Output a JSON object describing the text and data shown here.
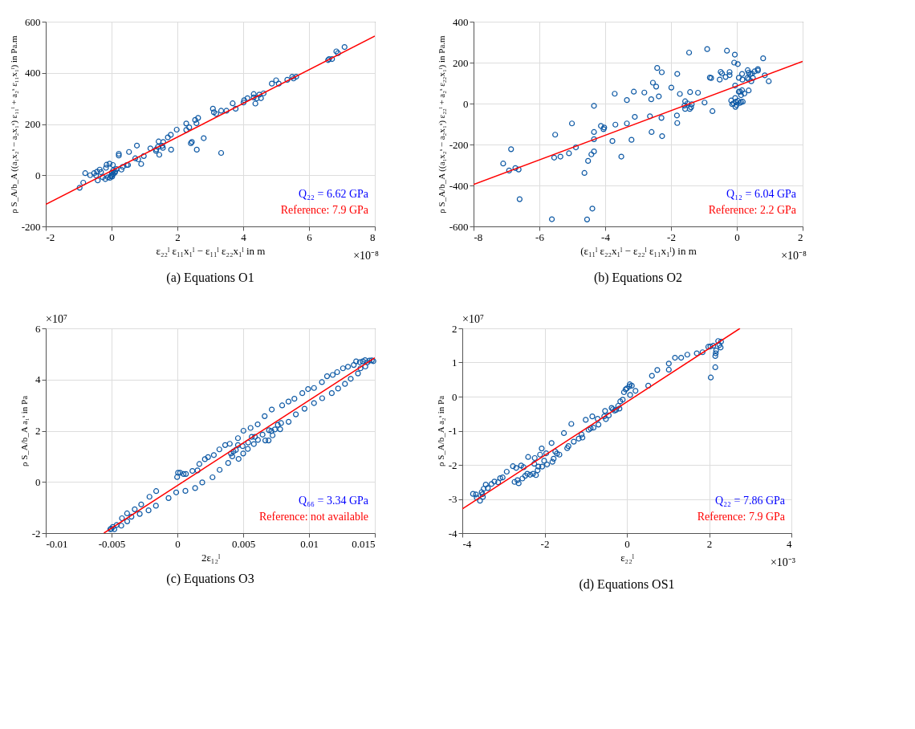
{
  "chart_data": [
    {
      "type": "scatter",
      "title": "(a) Equations O1",
      "xlabel": "ε₂₂ˡ ε₁₁x₁ˡ − ε₁₁ˡ ε₂₂x₁ˡ in m",
      "ylabel": "ρ S_A/b_A ((a₁x₂ˢ − a₂x₁ˢ) ε₁₁ˡ + a₂ˢ ε₁₁x₁ˡ) in Pa.m",
      "xlim": [
        -2,
        8
      ],
      "xticks": [
        -2,
        0,
        2,
        4,
        6,
        8
      ],
      "ylim": [
        -200,
        600
      ],
      "yticks": [
        -200,
        0,
        200,
        400,
        600
      ],
      "grid": true,
      "annotations": [
        "×10⁻⁸",
        "Q₂₂ = 6.62 GPa",
        "Reference: 7.9 GPa"
      ],
      "series": [
        {
          "marker": "circle",
          "color": "#0f5aa5",
          "x": [
            -0.97,
            -0.86,
            -0.8,
            -0.65,
            -0.53,
            -0.47,
            -0.42,
            -0.44,
            -0.36,
            -0.32,
            -0.27,
            -0.19,
            -0.17,
            -0.15,
            -0.06,
            0.04,
            -0.11,
            -0.02,
            0.01,
            0.05,
            0.11,
            0.15,
            0.22,
            0.22,
            0.3,
            0.34,
            0.46,
            0.5,
            0.53,
            0.72,
            0.77,
            0.81,
            0.9,
            0.98,
            1.18,
            1.35,
            1.36,
            1.41,
            1.43,
            1.45,
            1.54,
            1.57,
            1.56,
            1.71,
            1.8,
            1.81,
            1.98,
            2.27,
            2.27,
            2.36,
            2.41,
            2.44,
            2.54,
            2.58,
            2.63,
            2.59,
            2.8,
            3.08,
            3.11,
            3.18,
            3.33,
            3.33,
            3.49,
            3.68,
            3.77,
            4.01,
            4.03,
            4.13,
            4.32,
            4.32,
            4.37,
            4.41,
            4.49,
            4.54,
            4.62,
            4.87,
            5.0,
            5.08,
            5.34,
            5.49,
            5.53,
            5.61,
            6.58,
            6.61,
            6.7,
            6.83,
            6.88,
            7.08,
            0.0,
            0.05,
            0.1,
            -0.05,
            0.02
          ],
          "values": [
            -49,
            -29,
            8,
            0,
            8,
            -1,
            -20,
            14,
            22,
            12,
            -8,
            -15,
            29,
            41,
            45,
            40,
            -8,
            -4,
            10,
            19,
            15,
            24,
            84,
            77,
            22,
            33,
            40,
            40,
            91,
            66,
            116,
            62,
            44,
            75,
            105,
            95,
            101,
            111,
            132,
            80,
            115,
            130,
            107,
            148,
            158,
            100,
            178,
            202,
            177,
            187,
            125,
            130,
            216,
            203,
            224,
            100,
            145,
            260,
            246,
            240,
            252,
            87,
            252,
            281,
            260,
            284,
            293,
            301,
            317,
            304,
            280,
            300,
            315,
            301,
            320,
            358,
            371,
            358,
            373,
            385,
            378,
            385,
            450,
            454,
            454,
            484,
            477,
            501,
            0,
            5,
            10,
            -10,
            -5
          ]
        },
        {
          "type": "line",
          "color": "#ff0000",
          "x": [
            -2,
            8
          ],
          "values": [
            -114,
            544
          ]
        }
      ]
    },
    {
      "type": "scatter",
      "title": "(b) Equations O2",
      "xlabel": "(ε₁₁ˡ ε₂₂x₁ˡ − ε₂₂ˡ ε₁₁x₁ˡ) in m",
      "ylabel": "ρ S_A/b_A ((a₁x₂ˢ − a₂x₁ˢ) ε₂₂ˡ + a₂ˢ ε₂₂x₁ˡ) in Pa.m",
      "xlim": [
        -8,
        2
      ],
      "xticks": [
        -8,
        -6,
        -4,
        -2,
        0,
        2
      ],
      "ylim": [
        -600,
        400
      ],
      "yticks": [
        -600,
        -400,
        -200,
        0,
        200,
        400
      ],
      "grid": true,
      "annotations": [
        "×10⁻⁸",
        "Q₁₂ = 6.04 GPa",
        "Reference: 2.2 GPa"
      ],
      "series": [
        {
          "marker": "circle",
          "color": "#0f5aa5",
          "x": [
            -7.1,
            -6.92,
            -6.86,
            -6.73,
            -6.63,
            -6.6,
            -5.62,
            -5.55,
            -5.52,
            -5.36,
            -5.1,
            -5.01,
            -4.89,
            -4.63,
            -4.55,
            -4.52,
            -4.42,
            -4.39,
            -4.34,
            -4.34,
            -4.34,
            -4.34,
            -4.13,
            -4.05,
            -4.03,
            -3.78,
            -3.71,
            -3.69,
            -3.51,
            -3.34,
            -3.34,
            -3.2,
            -3.13,
            -3.1,
            -2.81,
            -2.64,
            -2.6,
            -2.59,
            -2.55,
            -2.45,
            -2.42,
            -2.37,
            -2.29,
            -2.28,
            -2.27,
            -1.99,
            -1.82,
            -1.81,
            -1.81,
            -1.73,
            -1.57,
            -1.59,
            -1.57,
            -1.5,
            -1.45,
            -1.43,
            -1.42,
            -1.37,
            -1.39,
            -1.18,
            -0.98,
            -0.9,
            -0.82,
            -0.78,
            -0.74,
            -0.52,
            -0.49,
            -0.45,
            -0.34,
            -0.3,
            -0.22,
            -0.22,
            -0.08,
            -0.06,
            -0.05,
            0.03,
            0.06,
            0.16,
            0.17,
            0.06,
            0.1,
            0.16,
            0.13,
            0.23,
            0.36,
            0.33,
            0.36,
            0.41,
            0.46,
            0.32,
            0.36,
            0.44,
            0.49,
            0.54,
            0.64,
            0.64,
            0.8,
            0.85,
            0.97,
            -0.17,
            -0.14,
            -0.1,
            -0.05,
            -0.04,
            -0.03,
            -0.01,
            0.04,
            0.09,
            0.13,
            0.18
          ],
          "values": [
            -293,
            -327,
            -223,
            -315,
            -322,
            -467,
            -565,
            -264,
            -152,
            -259,
            -243,
            -97,
            -214,
            -339,
            -566,
            -280,
            -248,
            -513,
            -234,
            -174,
            -139,
            -11,
            -109,
            -125,
            -117,
            -183,
            48,
            -103,
            -259,
            17,
            -97,
            -177,
            58,
            -65,
            54,
            -62,
            21,
            -139,
            102,
            83,
            174,
            35,
            -70,
            153,
            -159,
            78,
            -58,
            -95,
            145,
            47,
            11,
            -10,
            -26,
            1,
            249,
            -26,
            56,
            -3,
            -18,
            53,
            5,
            266,
            127,
            125,
            -37,
            117,
            155,
            147,
            130,
            258,
            154,
            139,
            200,
            239,
            88,
            193,
            126,
            145,
            117,
            58,
            58,
            65,
            41,
            49,
            64,
            163,
            151,
            144,
            147,
            125,
            119,
            109,
            125,
            157,
            168,
            161,
            221,
            138,
            109,
            15,
            -3,
            1,
            27,
            -16,
            9,
            -7,
            13,
            3,
            7,
            9
          ]
        },
        {
          "type": "line",
          "color": "#ff0000",
          "x": [
            -8,
            2
          ],
          "values": [
            -395,
            206
          ]
        }
      ]
    },
    {
      "type": "scatter",
      "title": "(c) Equations O3",
      "xlabel": "2ε₁₂ˡ",
      "ylabel": "ρ S_A/b_A a₁ˢ in Pa",
      "xlim": [
        -0.01,
        0.015
      ],
      "xticks": [
        -0.01,
        -0.005,
        0,
        0.005,
        0.01,
        0.015
      ],
      "ylim": [
        -2,
        6
      ],
      "yticks": [
        -2,
        0,
        2,
        4,
        6
      ],
      "grid": true,
      "annotations": [
        "×10⁷",
        "Q₆₆ = 3.34 GPa",
        "Reference: not available"
      ],
      "series": [
        {
          "marker": "circle",
          "color": "#0f5aa5",
          "x": [
            -0.0051,
            -0.00502,
            -0.00491,
            -0.00479,
            -0.00461,
            -0.00426,
            -0.00421,
            -0.00382,
            -0.00381,
            -0.00349,
            -0.00324,
            -0.00286,
            -0.00275,
            -0.00219,
            -0.00212,
            -0.00163,
            -0.00161,
            -0.00067,
            -9e-05,
            -2e-05,
            5e-05,
            0.00021,
            0.00047,
            0.00065,
            0.00061,
            0.00114,
            0.00135,
            0.00153,
            0.00167,
            0.00189,
            0.00209,
            0.00233,
            0.00267,
            0.00277,
            0.00319,
            0.00321,
            0.00363,
            0.00386,
            0.00398,
            0.00407,
            0.00417,
            0.00426,
            0.00444,
            0.0046,
            0.00465,
            0.0046,
            0.00496,
            0.00502,
            0.005,
            0.00535,
            0.00538,
            0.00556,
            0.00565,
            0.00581,
            0.00589,
            0.0061,
            0.00612,
            0.00647,
            0.00663,
            0.00668,
            0.00693,
            0.00696,
            0.00714,
            0.00717,
            0.00723,
            0.0074,
            0.00763,
            0.00781,
            0.00788,
            0.00796,
            0.00844,
            0.00845,
            0.00889,
            0.009,
            0.00949,
            0.00966,
            0.00993,
            0.01038,
            0.01038,
            0.01098,
            0.011,
            0.01137,
            0.01173,
            0.0118,
            0.01214,
            0.01221,
            0.01258,
            0.01273,
            0.01296,
            0.01317,
            0.0134,
            0.01358,
            0.01372,
            0.01386,
            0.01391,
            0.01408,
            0.01426,
            0.01428,
            0.01442,
            0.01459,
            0.01477,
            0.01489
          ],
          "values": [
            -1.85,
            -1.83,
            -1.76,
            -1.85,
            -1.68,
            -1.71,
            -1.42,
            -1.23,
            -1.54,
            -1.36,
            -1.07,
            -1.25,
            -0.88,
            -1.11,
            -0.58,
            -0.93,
            -0.36,
            -0.63,
            -0.41,
            0.19,
            0.36,
            0.36,
            0.31,
            0.31,
            -0.35,
            0.43,
            -0.24,
            0.45,
            0.7,
            -0.02,
            0.89,
            0.97,
            0.18,
            1.05,
            1.27,
            0.47,
            1.44,
            0.74,
            1.49,
            1.11,
            1.0,
            1.19,
            1.25,
            1.71,
            0.9,
            1.44,
            1.4,
            2.0,
            1.11,
            1.29,
            1.54,
            2.11,
            1.76,
            1.48,
            1.76,
            2.25,
            1.64,
            1.85,
            2.57,
            1.62,
            1.62,
            2.02,
            1.99,
            2.83,
            1.82,
            2.05,
            2.23,
            2.06,
            2.3,
            2.99,
            3.14,
            2.35,
            3.25,
            2.64,
            3.47,
            2.86,
            3.63,
            3.67,
            3.08,
            3.9,
            3.27,
            4.13,
            3.47,
            4.18,
            4.29,
            3.65,
            4.44,
            3.83,
            4.5,
            4.03,
            4.57,
            4.71,
            4.24,
            4.68,
            4.44,
            4.71,
            4.76,
            4.51,
            4.67,
            4.74,
            4.75,
            4.72
          ]
        },
        {
          "type": "line",
          "color": "#ff0000",
          "x": [
            -0.00558,
            0.015
          ],
          "values": [
            -2,
            4.85
          ]
        }
      ]
    },
    {
      "type": "scatter",
      "title": "(d) Equations OS1",
      "xlabel": "ε₂₂ˡ",
      "ylabel": "ρ S_A/b_A a₂ˢ in Pa",
      "xlim": [
        -4,
        4
      ],
      "xticks": [
        -4,
        -2,
        0,
        2,
        4
      ],
      "ylim": [
        -4,
        2
      ],
      "yticks": [
        -4,
        -3,
        -2,
        -1,
        0,
        1,
        2
      ],
      "grid": true,
      "annotations": [
        "×10⁷",
        "×10⁻³",
        "Q₂₂ = 7.86 GPa",
        "Reference: 7.9 GPa"
      ],
      "series": [
        {
          "marker": "circle",
          "color": "#0f5aa5",
          "x": [
            -3.74,
            -3.67,
            -3.65,
            -3.57,
            -3.53,
            -3.51,
            -3.5,
            -3.48,
            -3.43,
            -3.38,
            -3.29,
            -3.22,
            -3.13,
            -3.08,
            -3.02,
            -2.92,
            -2.77,
            -2.73,
            -2.69,
            -2.66,
            -2.63,
            -2.57,
            -2.54,
            -2.51,
            -2.47,
            -2.42,
            -2.4,
            -2.35,
            -2.28,
            -2.25,
            -2.24,
            -2.21,
            -2.17,
            -2.15,
            -2.11,
            -2.07,
            -2.06,
            -2.01,
            -1.96,
            -1.94,
            -1.83,
            -1.81,
            -1.78,
            -1.74,
            -1.7,
            -1.64,
            -1.53,
            -1.45,
            -1.42,
            -1.35,
            -1.29,
            -1.17,
            -1.1,
            -1.08,
            -1.0,
            -0.93,
            -0.88,
            -0.84,
            -0.81,
            -0.71,
            -0.69,
            -0.55,
            -0.53,
            -0.51,
            -0.44,
            -0.37,
            -0.34,
            -0.3,
            -0.26,
            -0.21,
            -0.18,
            -0.16,
            -0.1,
            -0.07,
            -0.03,
            0.0,
            0.06,
            0.07,
            0.08,
            0.12,
            0.21,
            0.52,
            0.61,
            0.74,
            1.02,
            1.02,
            1.17,
            1.32,
            1.47,
            1.7,
            1.84,
            1.98,
            2.03,
            2.1,
            2.04,
            2.15,
            2.15,
            2.16,
            2.17,
            2.22,
            2.25,
            2.28,
            2.29
          ],
          "values": [
            -2.85,
            -2.87,
            -2.96,
            -3.05,
            -2.8,
            -2.86,
            -2.94,
            -2.7,
            -2.58,
            -2.68,
            -2.56,
            -2.49,
            -2.51,
            -2.39,
            -2.37,
            -2.2,
            -2.04,
            -2.5,
            -2.09,
            -2.45,
            -2.54,
            -2.02,
            -2.4,
            -2.07,
            -2.32,
            -2.26,
            -1.77,
            -2.29,
            -2.26,
            -1.97,
            -1.8,
            -2.3,
            -2.16,
            -2.05,
            -1.7,
            -1.52,
            -2.05,
            -1.88,
            -1.66,
            -1.99,
            -1.36,
            -1.91,
            -1.82,
            -1.61,
            -1.67,
            -1.7,
            -1.07,
            -1.51,
            -1.45,
            -0.8,
            -1.32,
            -1.23,
            -1.11,
            -1.2,
            -0.68,
            -0.97,
            -0.93,
            -0.58,
            -0.91,
            -0.65,
            -0.82,
            -0.58,
            -0.42,
            -0.66,
            -0.55,
            -0.33,
            -0.37,
            -0.41,
            -0.39,
            -0.27,
            -0.35,
            -0.14,
            -0.09,
            0.13,
            0.21,
            0.24,
            0.3,
            0.36,
            0.05,
            0.32,
            0.17,
            0.32,
            0.61,
            0.78,
            0.79,
            0.97,
            1.14,
            1.14,
            1.23,
            1.27,
            1.3,
            1.46,
            1.47,
            1.49,
            0.56,
            0.86,
            1.19,
            1.27,
            1.35,
            1.63,
            1.51,
            1.44,
            1.61
          ]
        },
        {
          "type": "line",
          "color": "#ff0000",
          "x": [
            -4,
            2.75
          ],
          "values": [
            -3.29,
            2.0
          ]
        }
      ]
    }
  ]
}
